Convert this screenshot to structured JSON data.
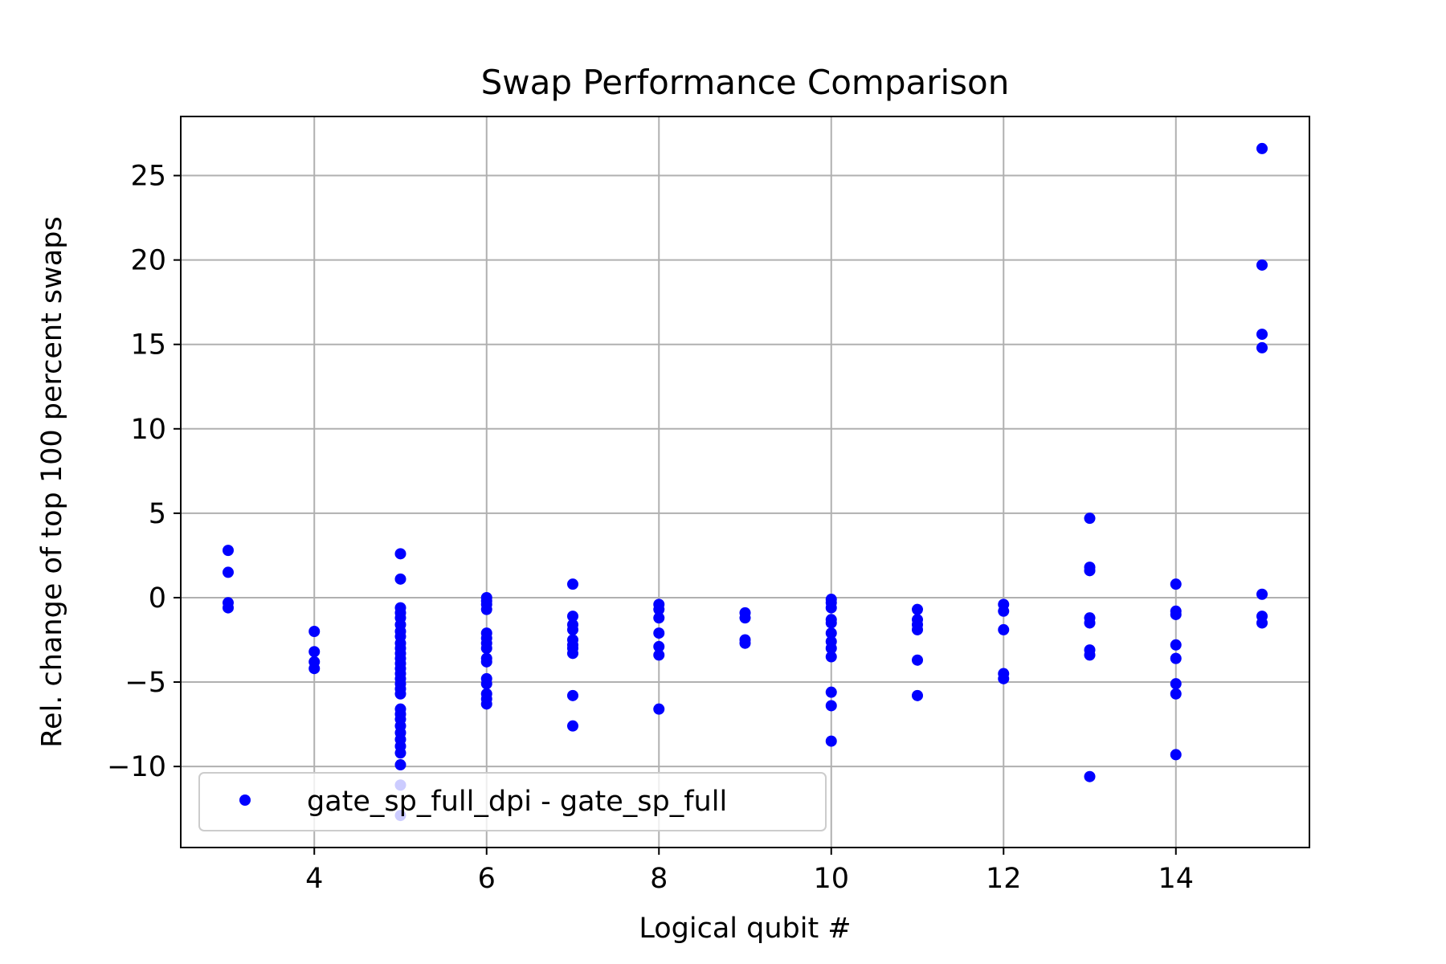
{
  "chart_data": {
    "type": "scatter",
    "title": "Swap Performance Comparison",
    "xlabel": "Logical qubit #",
    "ylabel": "Rel. change of top 100 percent swaps",
    "xlim": [
      2.45,
      15.55
    ],
    "ylim": [
      -14.8,
      28.5
    ],
    "xticks": [
      4,
      6,
      8,
      10,
      12,
      14
    ],
    "yticks": [
      -10,
      -5,
      0,
      5,
      10,
      15,
      20,
      25
    ],
    "xtick_labels": [
      "4",
      "6",
      "8",
      "10",
      "12",
      "14"
    ],
    "ytick_labels": [
      "−10",
      "−5",
      "0",
      "5",
      "10",
      "15",
      "20",
      "25"
    ],
    "grid": true,
    "legend_placement": "lower-left",
    "colors": {
      "series": "#0000ff",
      "grid": "#b0b0b0",
      "axes": "#000000",
      "legend_border": "#cccccc"
    },
    "series": [
      {
        "name": "gate_sp_full_dpi - gate_sp_full",
        "marker": "circle",
        "points": [
          [
            3,
            2.8
          ],
          [
            3,
            1.5
          ],
          [
            3,
            -0.3
          ],
          [
            3,
            -0.6
          ],
          [
            4,
            -2.0
          ],
          [
            4,
            -3.2
          ],
          [
            4,
            -3.8
          ],
          [
            4,
            -4.2
          ],
          [
            5,
            2.6
          ],
          [
            5,
            1.1
          ],
          [
            5,
            -0.6
          ],
          [
            5,
            -0.9
          ],
          [
            5,
            -1.2
          ],
          [
            5,
            -1.6
          ],
          [
            5,
            -2.0
          ],
          [
            5,
            -2.3
          ],
          [
            5,
            -2.7
          ],
          [
            5,
            -3.0
          ],
          [
            5,
            -3.3
          ],
          [
            5,
            -3.6
          ],
          [
            5,
            -3.9
          ],
          [
            5,
            -4.2
          ],
          [
            5,
            -4.5
          ],
          [
            5,
            -4.8
          ],
          [
            5,
            -5.1
          ],
          [
            5,
            -5.4
          ],
          [
            5,
            -5.7
          ],
          [
            5,
            -6.6
          ],
          [
            5,
            -6.9
          ],
          [
            5,
            -7.2
          ],
          [
            5,
            -7.6
          ],
          [
            5,
            -8.0
          ],
          [
            5,
            -8.4
          ],
          [
            5,
            -8.8
          ],
          [
            5,
            -9.2
          ],
          [
            5,
            -9.9
          ],
          [
            5,
            -11.1
          ],
          [
            5,
            -12.9
          ],
          [
            6,
            0.0
          ],
          [
            6,
            -0.2
          ],
          [
            6,
            -0.4
          ],
          [
            6,
            -0.7
          ],
          [
            6,
            -2.1
          ],
          [
            6,
            -2.4
          ],
          [
            6,
            -2.7
          ],
          [
            6,
            -3.0
          ],
          [
            6,
            -3.6
          ],
          [
            6,
            -3.8
          ],
          [
            6,
            -4.8
          ],
          [
            6,
            -5.1
          ],
          [
            6,
            -5.7
          ],
          [
            6,
            -6.0
          ],
          [
            6,
            -6.3
          ],
          [
            7,
            0.8
          ],
          [
            7,
            -1.1
          ],
          [
            7,
            -1.6
          ],
          [
            7,
            -1.9
          ],
          [
            7,
            -2.5
          ],
          [
            7,
            -2.8
          ],
          [
            7,
            -3.0
          ],
          [
            7,
            -3.3
          ],
          [
            7,
            -5.8
          ],
          [
            7,
            -7.6
          ],
          [
            8,
            -0.4
          ],
          [
            8,
            -0.7
          ],
          [
            8,
            -1.2
          ],
          [
            8,
            -2.1
          ],
          [
            8,
            -2.9
          ],
          [
            8,
            -3.4
          ],
          [
            8,
            -6.6
          ],
          [
            9,
            -0.9
          ],
          [
            9,
            -1.2
          ],
          [
            9,
            -2.5
          ],
          [
            9,
            -2.7
          ],
          [
            10,
            -0.1
          ],
          [
            10,
            -0.3
          ],
          [
            10,
            -0.6
          ],
          [
            10,
            -1.3
          ],
          [
            10,
            -1.5
          ],
          [
            10,
            -2.1
          ],
          [
            10,
            -2.6
          ],
          [
            10,
            -3.0
          ],
          [
            10,
            -3.5
          ],
          [
            10,
            -5.6
          ],
          [
            10,
            -6.4
          ],
          [
            10,
            -8.5
          ],
          [
            11,
            -0.7
          ],
          [
            11,
            -1.3
          ],
          [
            11,
            -1.6
          ],
          [
            11,
            -1.9
          ],
          [
            11,
            -3.7
          ],
          [
            11,
            -5.8
          ],
          [
            12,
            -0.4
          ],
          [
            12,
            -0.8
          ],
          [
            12,
            -1.9
          ],
          [
            12,
            -4.5
          ],
          [
            12,
            -4.8
          ],
          [
            13,
            4.7
          ],
          [
            13,
            1.8
          ],
          [
            13,
            1.6
          ],
          [
            13,
            -1.2
          ],
          [
            13,
            -1.5
          ],
          [
            13,
            -3.1
          ],
          [
            13,
            -3.4
          ],
          [
            13,
            -10.6
          ],
          [
            14,
            0.8
          ],
          [
            14,
            -0.8
          ],
          [
            14,
            -1.0
          ],
          [
            14,
            -2.8
          ],
          [
            14,
            -3.6
          ],
          [
            14,
            -5.1
          ],
          [
            14,
            -5.7
          ],
          [
            14,
            -9.3
          ],
          [
            15,
            26.6
          ],
          [
            15,
            19.7
          ],
          [
            15,
            15.6
          ],
          [
            15,
            14.8
          ],
          [
            15,
            0.2
          ],
          [
            15,
            -1.1
          ],
          [
            15,
            -1.5
          ]
        ]
      }
    ]
  }
}
